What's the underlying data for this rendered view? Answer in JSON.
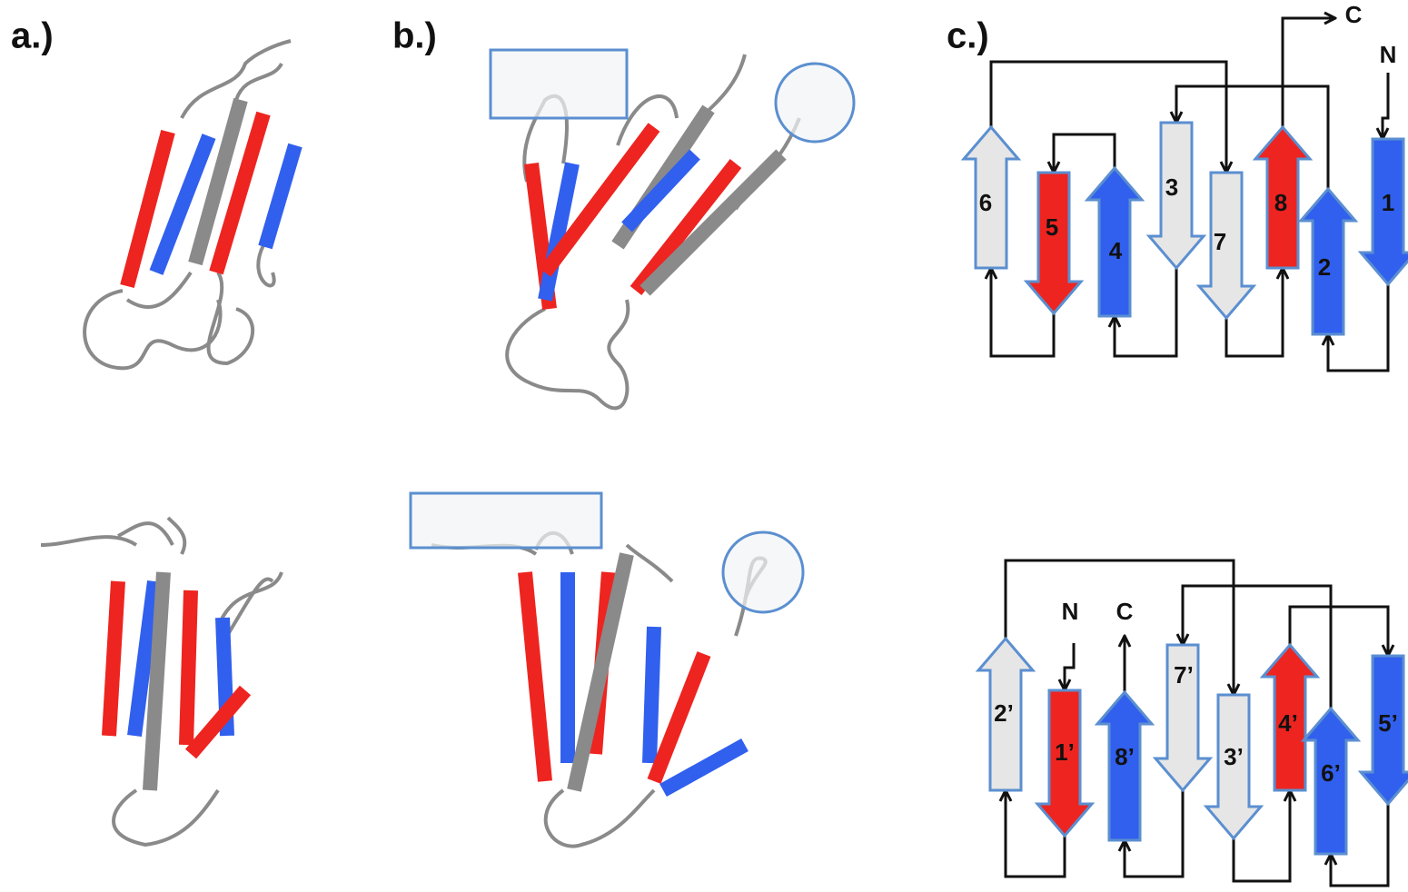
{
  "panels": {
    "a": "a.)",
    "b": "b.)",
    "c": "c.)"
  },
  "topology_top": {
    "strands": [
      "6",
      "5",
      "4",
      "3",
      "7",
      "8",
      "2",
      "1"
    ],
    "n_terminus": "N",
    "c_terminus": "C"
  },
  "topology_bottom": {
    "strands": [
      "2’",
      "1’",
      "8’",
      "7’",
      "3’",
      "4’",
      "6’",
      "5’"
    ],
    "n_terminus": "N",
    "c_terminus": "C"
  }
}
